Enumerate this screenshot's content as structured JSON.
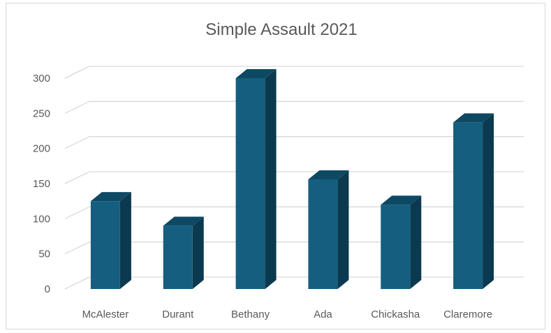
{
  "chart_data": {
    "type": "bar",
    "title": "Simple Assault 2021",
    "categories": [
      "McAlester",
      "Durant",
      "Bethany",
      "Ada",
      "Chickasha",
      "Claremore"
    ],
    "values": [
      125,
      90,
      300,
      156,
      120,
      237
    ],
    "ylim": [
      0,
      300
    ],
    "yticks": [
      0,
      50,
      100,
      150,
      200,
      250,
      300
    ],
    "grid": true,
    "legend": "none",
    "style": "3d-column",
    "colors": {
      "front": "#155E7F",
      "side": "#0B3A50",
      "top": "#0E4964",
      "grid": "#d9d9d9",
      "text": "#595959"
    }
  }
}
